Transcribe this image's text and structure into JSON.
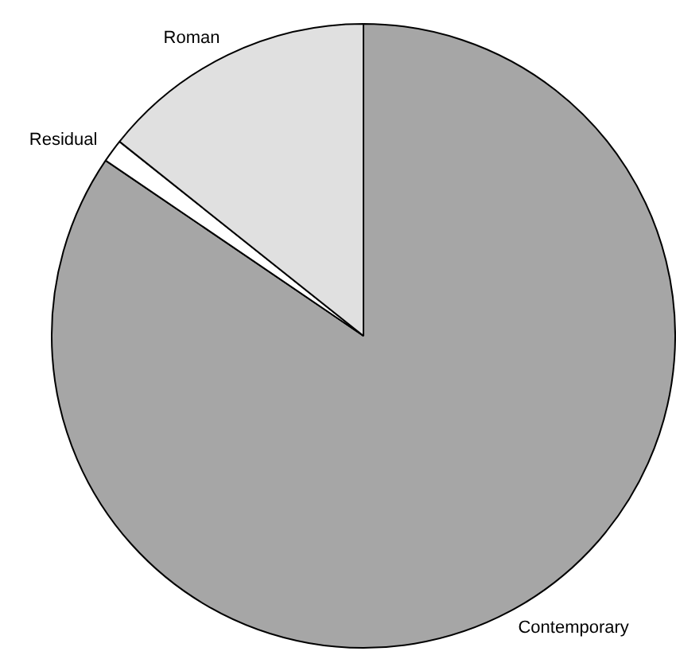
{
  "chart_data": {
    "type": "pie",
    "categories": [
      "Contemporary",
      "Residual",
      "Roman"
    ],
    "values": [
      84.5,
      1.2,
      14.3
    ],
    "colors": [
      "#a6a6a6",
      "#ffffff",
      "#e0e0e0"
    ]
  }
}
